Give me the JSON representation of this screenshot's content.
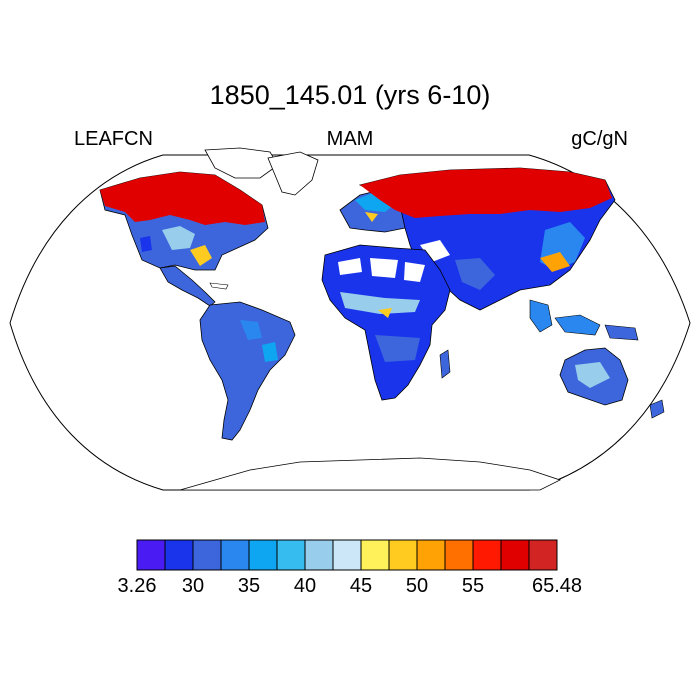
{
  "title": "1850_145.01 (yrs 6-10)",
  "variable": "LEAFCN",
  "season": "MAM",
  "units": "gC/gN",
  "colors": {
    "ocean": "#ffffff",
    "coastline": "#000000",
    "no_data_land": "#ffffff"
  },
  "colorbar": {
    "colors": [
      "#4a1bf2",
      "#1a34ec",
      "#3d66dd",
      "#2a87f0",
      "#0fa6f1",
      "#37bcf0",
      "#98cdeb",
      "#cce8f8",
      "#fff159",
      "#ffcb21",
      "#ffa206",
      "#ff7000",
      "#ff1900",
      "#e00000",
      "#d32424"
    ],
    "tick_labels": [
      {
        "label": "3.26",
        "index": 0
      },
      {
        "label": "30",
        "index": 2
      },
      {
        "label": "35",
        "index": 4
      },
      {
        "label": "40",
        "index": 6
      },
      {
        "label": "45",
        "index": 8
      },
      {
        "label": "50",
        "index": 10
      },
      {
        "label": "55",
        "index": 12
      },
      {
        "label": "65.48",
        "index": 15
      }
    ]
  }
}
